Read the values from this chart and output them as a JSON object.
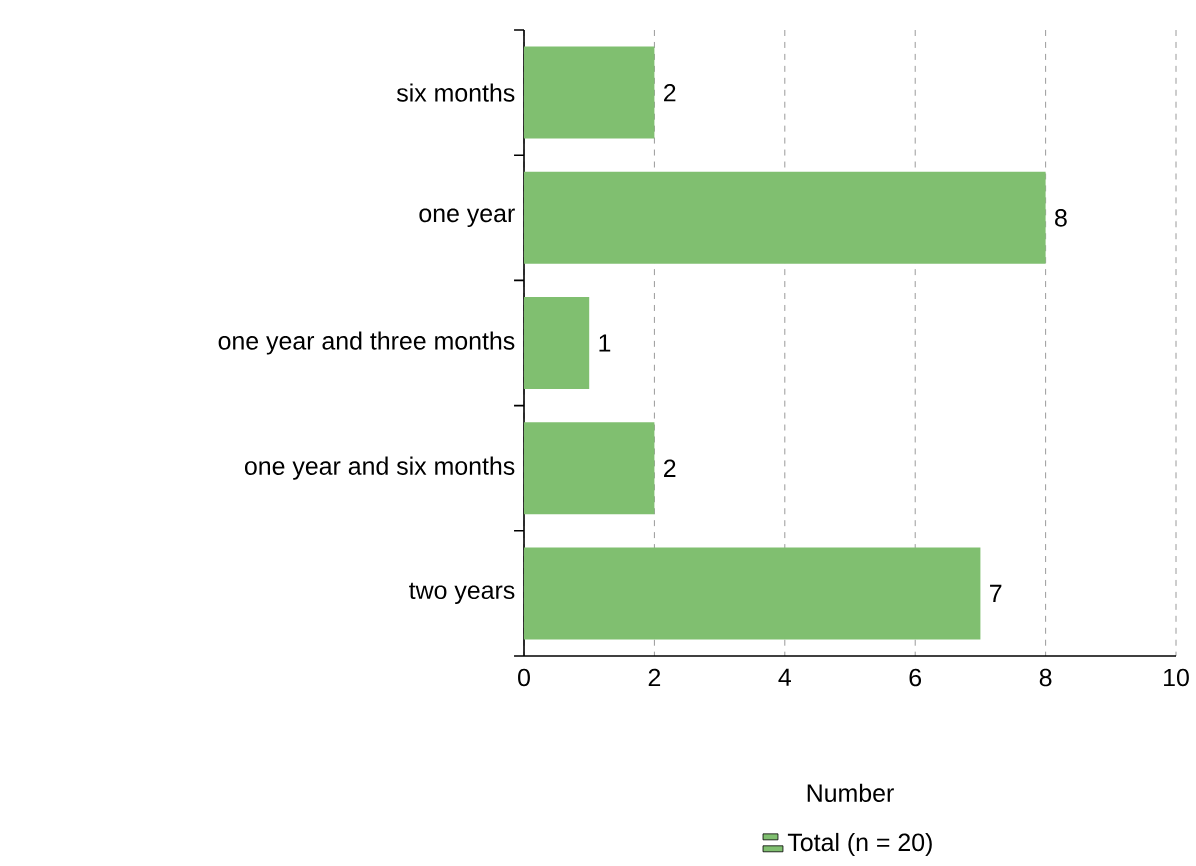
{
  "chart_data": {
    "type": "bar",
    "orientation": "horizontal",
    "xlabel": "Number",
    "categories": [
      "six months",
      "one year",
      "one year and three months",
      "one year and six months",
      "two years"
    ],
    "series": [
      {
        "name": "Total (n = 20)",
        "color": "#80bf70",
        "values": [
          2,
          8,
          1,
          2,
          7
        ]
      }
    ],
    "xlim": [
      0,
      10
    ],
    "xticks": [
      0,
      2,
      4,
      6,
      8,
      10
    ],
    "grid": "x",
    "legend": "bottom",
    "data_labels": true
  }
}
